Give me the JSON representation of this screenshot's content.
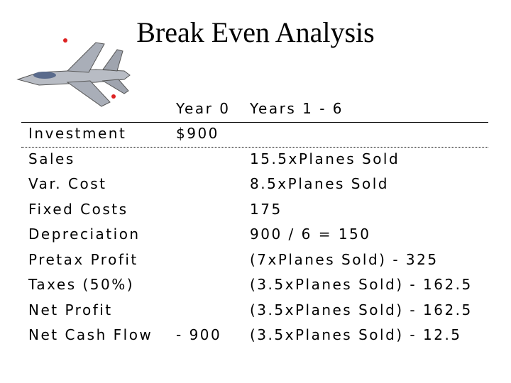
{
  "title": "Break Even Analysis",
  "table": {
    "header": {
      "year0": "Year 0",
      "years": "Years 1 - 6"
    },
    "rows": [
      {
        "label": "Investment",
        "year0": "$900"
      },
      {
        "label": "Sales",
        "years": "15.5xPlanes Sold"
      },
      {
        "label": "Var. Cost",
        "years": "8.5xPlanes Sold"
      },
      {
        "label": "Fixed Costs",
        "years": "175"
      },
      {
        "label": "Depreciation",
        "years": "900 / 6 = 150"
      },
      {
        "label": "Pretax Profit",
        "years": "(7xPlanes Sold) - 325"
      },
      {
        "label": "Taxes (50%)",
        "years": "(3.5xPlanes Sold) - 162.5"
      },
      {
        "label": "Net Profit",
        "years": "(3.5xPlanes Sold) - 162.5"
      },
      {
        "label": "Net Cash Flow",
        "year0": "- 900",
        "years": "(3.5xPlanes Sold) - 12.5"
      }
    ]
  }
}
